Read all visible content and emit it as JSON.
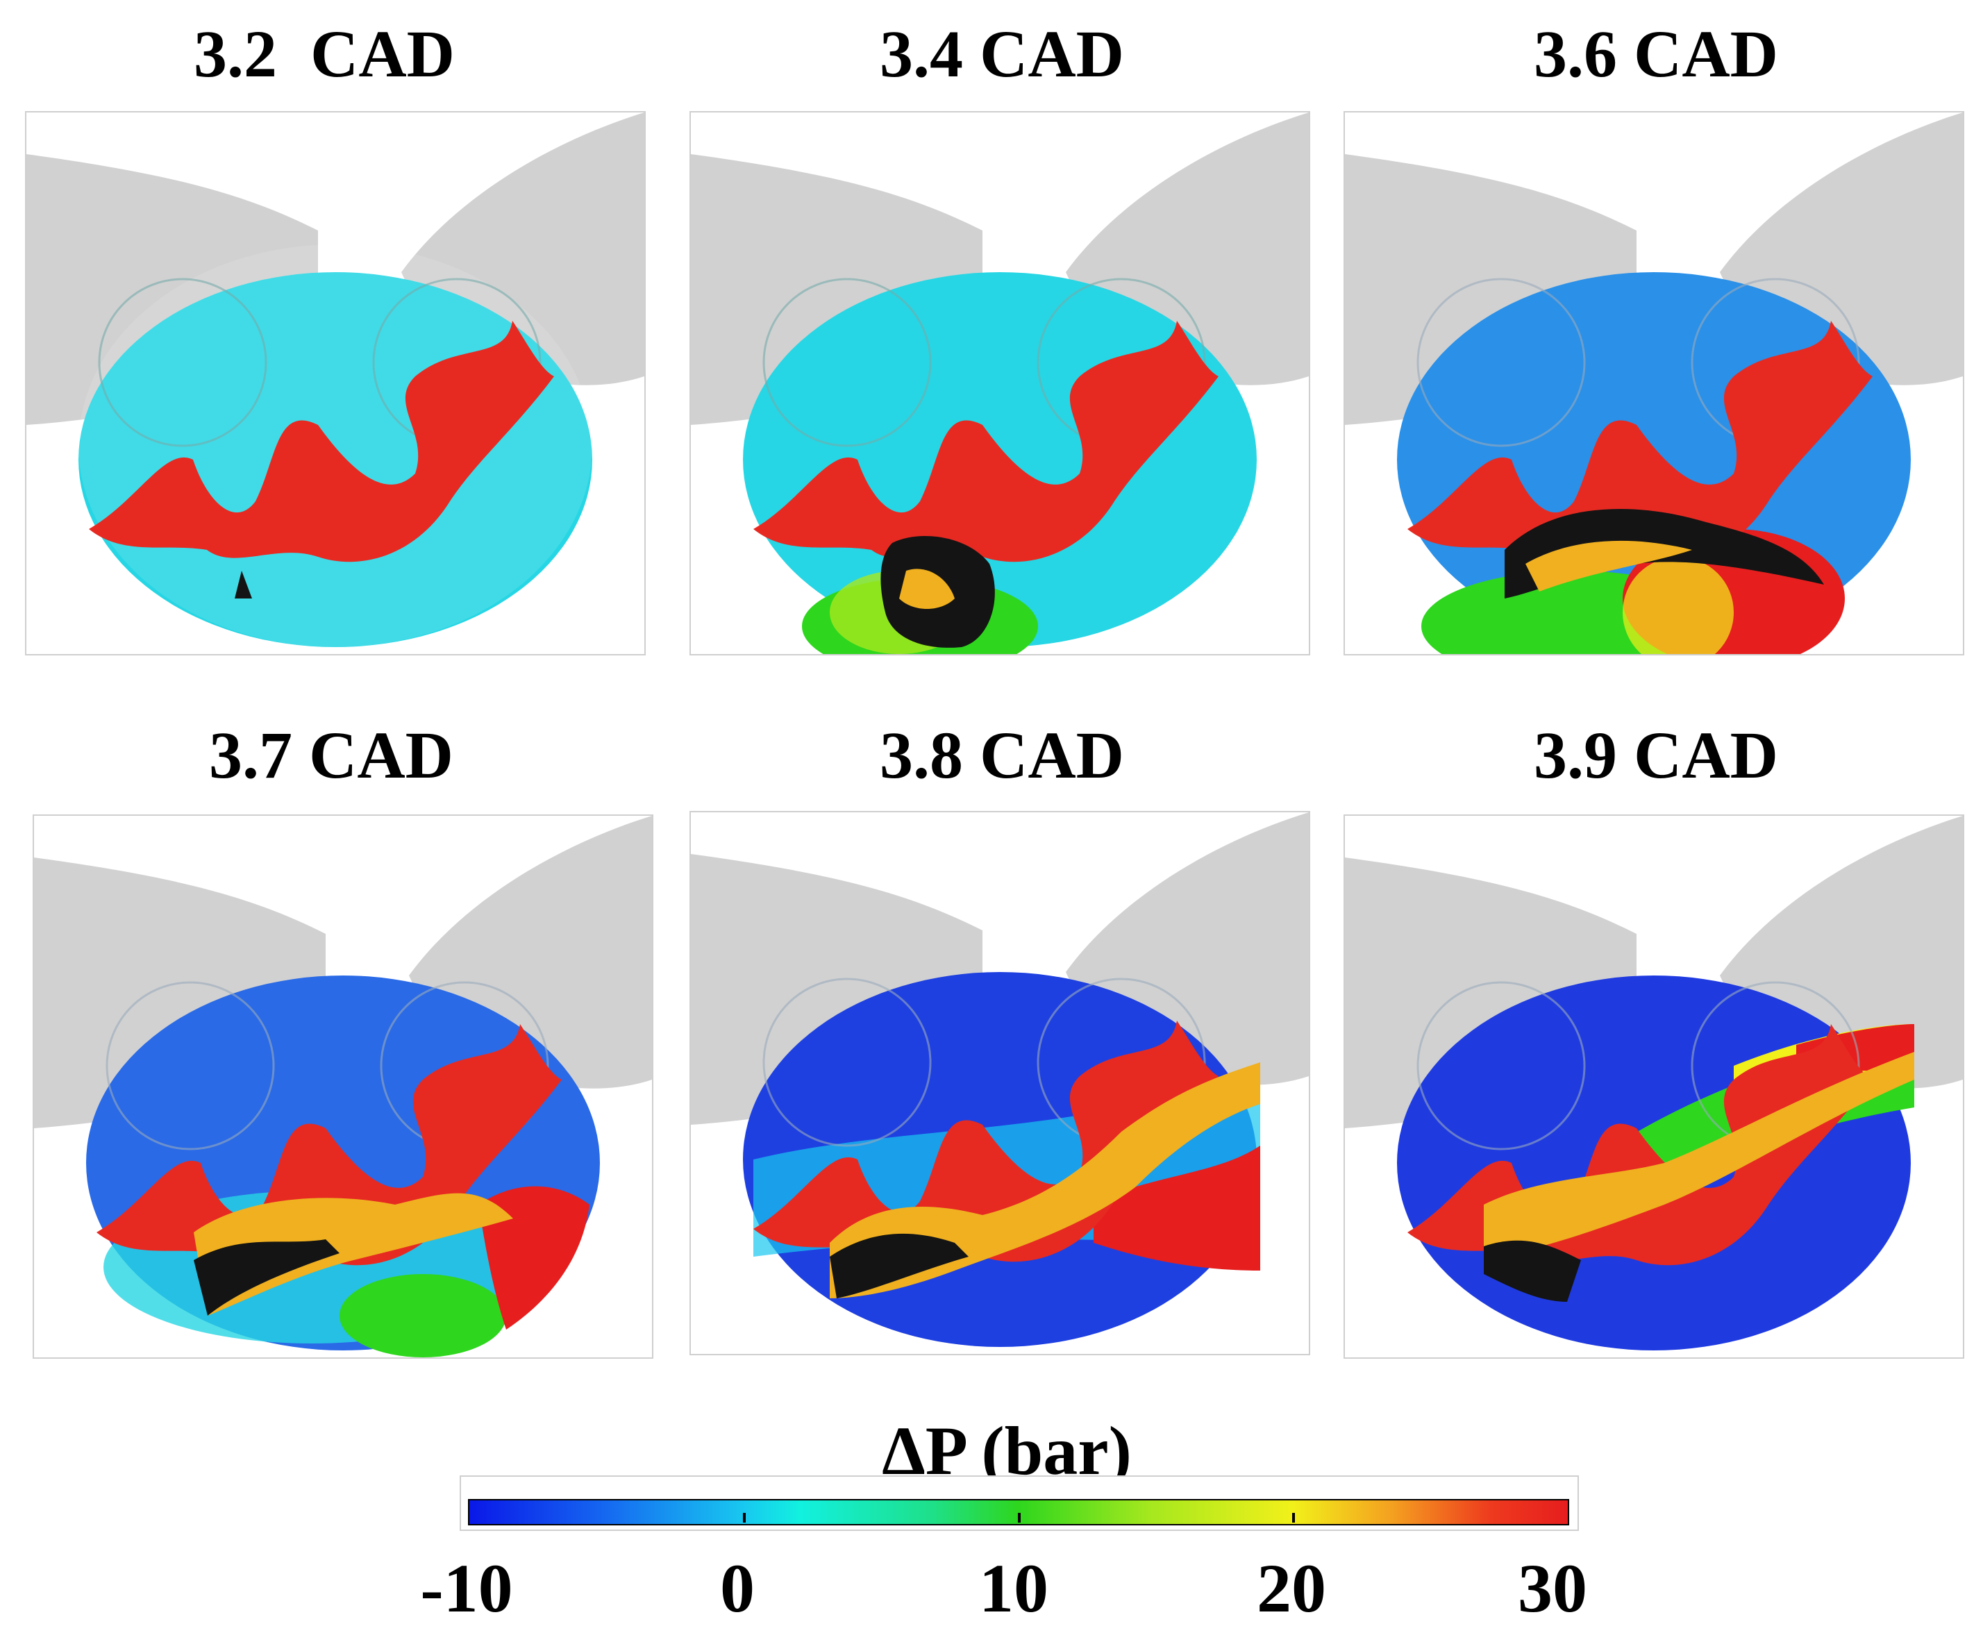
{
  "panels": [
    {
      "label": "3.2  CAD"
    },
    {
      "label": "3.4 CAD"
    },
    {
      "label": "3.6 CAD"
    },
    {
      "label": "3.7 CAD"
    },
    {
      "label": "3.8 CAD"
    },
    {
      "label": "3.9 CAD"
    }
  ],
  "colorbar": {
    "title": "ΔP (bar)",
    "ticks": [
      "-10",
      "0",
      "10",
      "20",
      "30"
    ],
    "range": [
      -10,
      30
    ],
    "colors": [
      "#0a18e8",
      "#18c8f0",
      "#2ed61e",
      "#f2f01a",
      "#e61e1e"
    ]
  },
  "scene_colors": {
    "cylinder_levels": [
      "#26d6e4",
      "#26d6e4",
      "#2a90e8",
      "#2a6ae6",
      "#1e40e0",
      "#1f3be0"
    ],
    "flame": "#e62a22",
    "burnt": "#f0b020",
    "soot": "#141414",
    "ports": "#bdbdbd"
  }
}
